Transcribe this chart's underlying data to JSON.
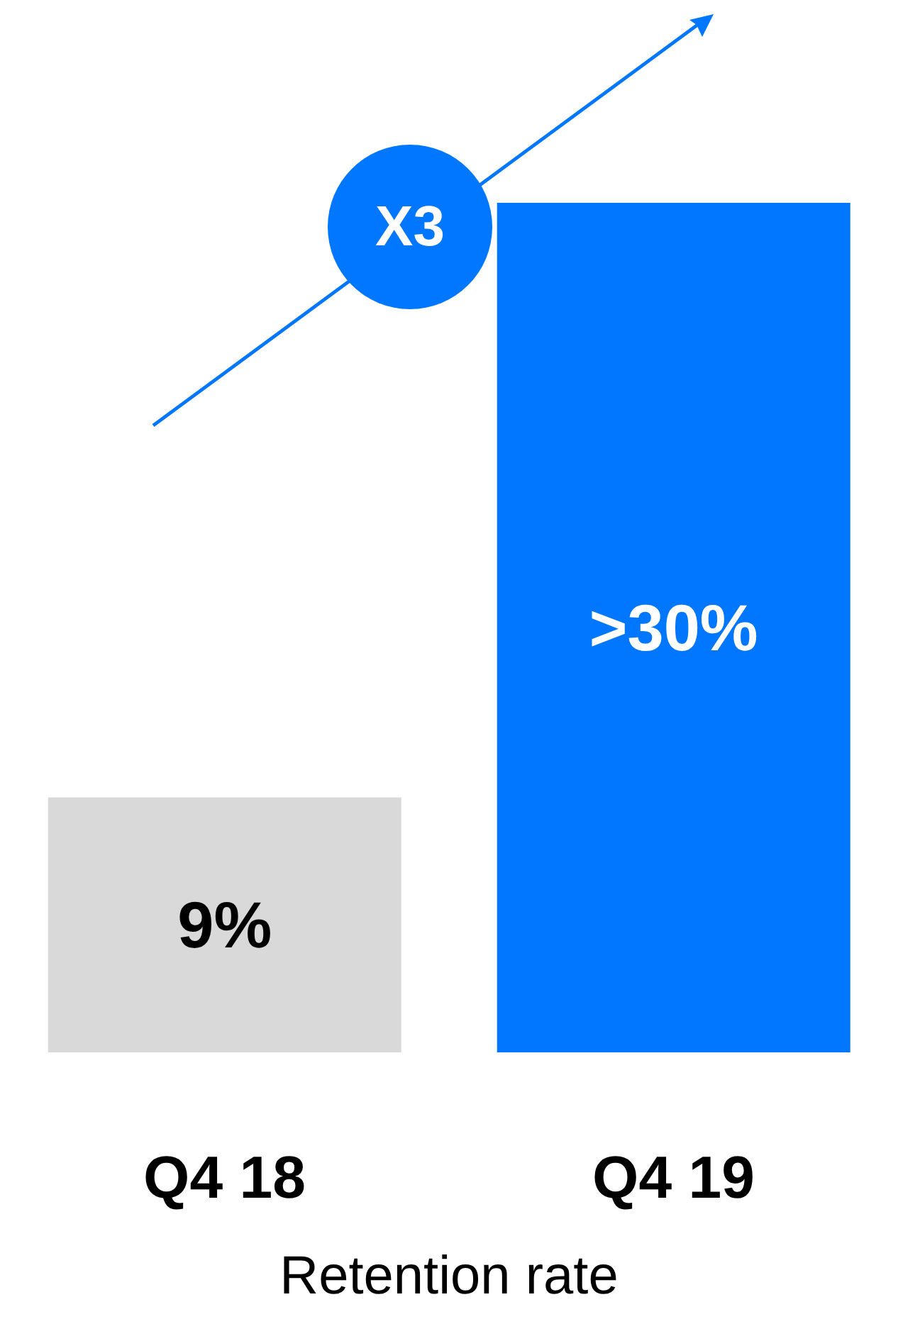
{
  "chart_data": {
    "type": "bar",
    "xlabel": "Retention rate",
    "categories": [
      "Q4 18",
      "Q4 19"
    ],
    "values": [
      9,
      30
    ],
    "colors": [
      "#d9d9d9",
      "#0077fe"
    ],
    "value_labels": [
      "9%",
      ">30%"
    ],
    "annotations": [
      "X3"
    ]
  }
}
